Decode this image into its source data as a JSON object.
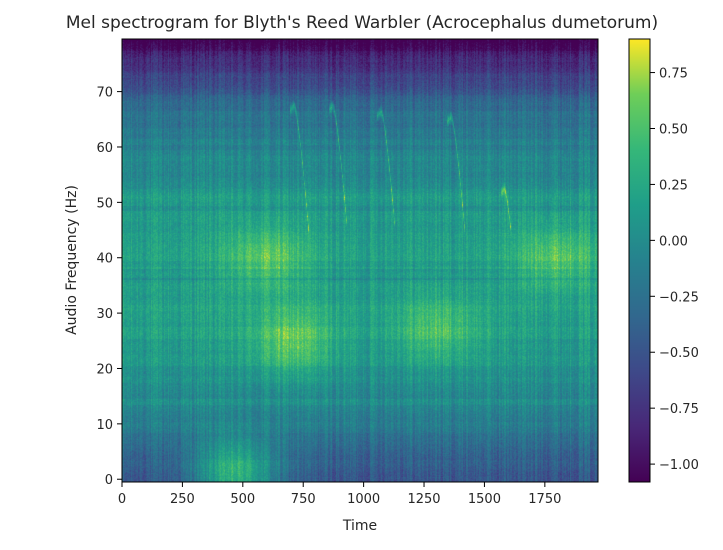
{
  "chart_data": {
    "type": "heatmap",
    "title": "Mel spectrogram for Blyth's Reed Warbler (Acrocephalus dumetorum)",
    "xlabel": "Time",
    "ylabel": "Audio Frequency (Hz)",
    "xlim": [
      0,
      1970
    ],
    "ylim": [
      -0.5,
      79.5
    ],
    "x_ticks": [
      0,
      250,
      500,
      750,
      1000,
      1250,
      1500,
      1750
    ],
    "y_ticks": [
      0,
      10,
      20,
      30,
      40,
      50,
      60,
      70
    ],
    "colormap": "viridis",
    "colorbar": {
      "range": [
        -1.08,
        0.9
      ],
      "ticks": [
        -1.0,
        -0.75,
        -0.5,
        -0.25,
        0.0,
        0.25,
        0.5,
        0.75
      ],
      "tick_labels": [
        "−1.00",
        "−0.75",
        "−0.50",
        "−0.25",
        "0.00",
        "0.25",
        "0.50",
        "0.75"
      ]
    },
    "grid": false,
    "features": {
      "horizontal_bands": [
        {
          "freq_bin": 51,
          "level": 0.1
        },
        {
          "freq_bin": 37,
          "level": -0.05
        }
      ],
      "warm_regions": [
        {
          "time": 700,
          "freq_bin": 25,
          "level": 0.55
        },
        {
          "time": 600,
          "freq_bin": 40,
          "level": 0.5
        },
        {
          "time": 1800,
          "freq_bin": 40,
          "level": 0.5
        },
        {
          "time": 1300,
          "freq_bin": 27,
          "level": 0.45
        },
        {
          "time": 470,
          "freq_bin": 1,
          "level": 0.9
        }
      ],
      "chirps": [
        {
          "time": 720,
          "freq_bin": 68
        },
        {
          "time": 880,
          "freq_bin": 68
        },
        {
          "time": 1080,
          "freq_bin": 67
        },
        {
          "time": 1370,
          "freq_bin": 66
        },
        {
          "time": 1590,
          "freq_bin": 53
        }
      ]
    }
  }
}
